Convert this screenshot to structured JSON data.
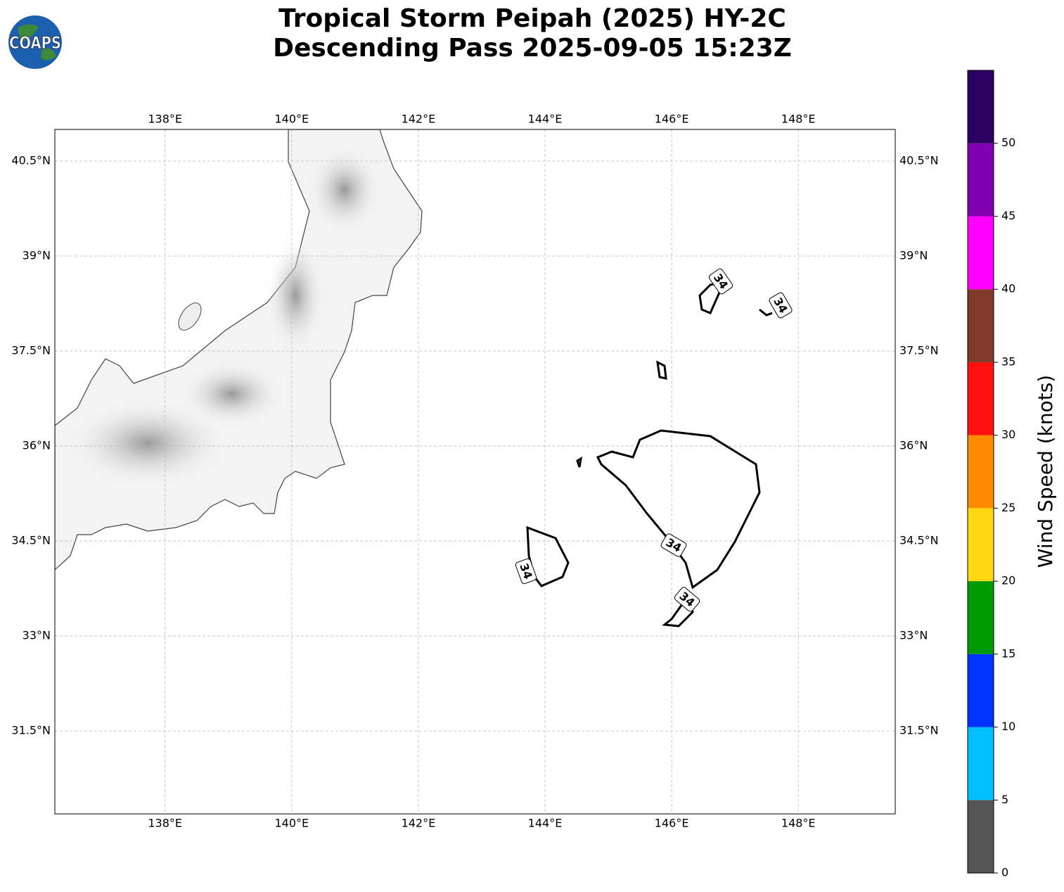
{
  "logo": "COAPS",
  "title": [
    "Tropical Storm Peipah (2025) HY-2C",
    "Descending Pass 2025-09-05 15:23Z"
  ],
  "map": {
    "type": "map",
    "xlim": [
      136.26,
      149.53
    ],
    "ylim": [
      30.19,
      41.0
    ],
    "xticks": [
      {
        "value": 138,
        "label": "138°E"
      },
      {
        "value": 140,
        "label": "140°E"
      },
      {
        "value": 142,
        "label": "142°E"
      },
      {
        "value": 144,
        "label": "144°E"
      },
      {
        "value": 146,
        "label": "146°E"
      },
      {
        "value": 148,
        "label": "148°E"
      }
    ],
    "yticks": [
      {
        "value": 31.5,
        "label": "31.5°N"
      },
      {
        "value": 33,
        "label": "33°N"
      },
      {
        "value": 34.5,
        "label": "34.5°N"
      },
      {
        "value": 36,
        "label": "36°N"
      },
      {
        "value": 37.5,
        "label": "37.5°N"
      },
      {
        "value": 39,
        "label": "39°N"
      },
      {
        "value": 40.5,
        "label": "40.5°N"
      }
    ],
    "grid": true,
    "contour_level": 34
  },
  "colorbar": {
    "label": "Wind Speed (knots)",
    "bounds": [
      0,
      5,
      10,
      15,
      20,
      25,
      30,
      35,
      40,
      45,
      50,
      55
    ],
    "colors": [
      "#555555",
      "#00bfff",
      "#0033ff",
      "#009900",
      "#ffd712",
      "#ff8c00",
      "#ff1010",
      "#7f3a2a",
      "#ff00ff",
      "#8000b0",
      "#2a0060"
    ],
    "ticks": [
      0,
      5,
      10,
      15,
      20,
      25,
      30,
      35,
      40,
      45,
      50
    ]
  }
}
